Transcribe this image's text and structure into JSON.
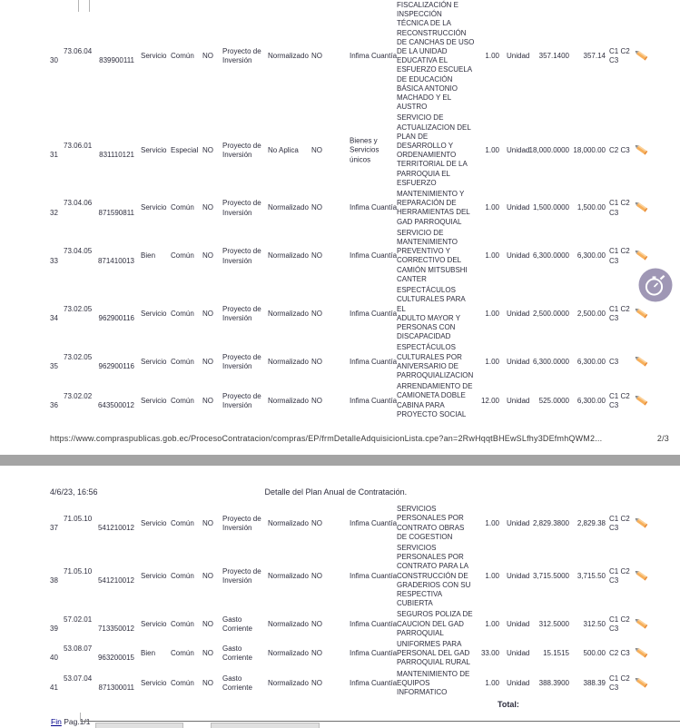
{
  "colors": {
    "pencil": "#f7b05c",
    "pencil_tip": "#8a8a8a",
    "overlay_circle": "#958cad",
    "link": "#00008b",
    "separator_bar": "#a4a4a4"
  },
  "page2": {
    "rows": [
      {
        "num": "30",
        "partida": "73.06.04",
        "codigo": "839900111",
        "tipo": "Servicio",
        "compra": "Común",
        "flag": "NO",
        "presupuesto": "Proyecto de Inversión",
        "normalizado_label": "Normalizado",
        "normalizado_flag": "NO",
        "procedimiento_lines": [
          "Infima Cuantía"
        ],
        "descripcion_lines": [
          "FISCALIZACIÓN E",
          "INSPECCIÓN",
          "TÉCNICA DE LA",
          "RECONSTRUCCIÓN",
          "DE CANCHAS DE USO",
          "DE LA UNIDAD",
          "EDUCATIVA EL",
          "ESFUERZO ESCUELA",
          "DE EDUCACIÓN",
          "BÁSICA ANTONIO",
          "MACHADO Y EL",
          "AUSTRO"
        ],
        "cantidad": "1.00",
        "unidad": "Unidad",
        "costo_unitario": "357.1400",
        "costo_total": "357.14",
        "cuatrimestre": "C1 C2 C3"
      },
      {
        "num": "31",
        "partida": "73.06.01",
        "codigo": "831110121",
        "tipo": "Servicio",
        "compra": "Especial",
        "flag": "NO",
        "presupuesto": "Proyecto de Inversión",
        "normalizado_label": "No Aplica",
        "normalizado_flag": "NO",
        "procedimiento_lines": [
          "Bienes y",
          "Servicios",
          "únicos"
        ],
        "descripcion_lines": [
          "SERVICIO DE",
          "ACTUALIZACION DEL",
          "PLAN DE",
          "DESARROLLO Y",
          "ORDENAMIENTO",
          "TERRITORIAL DE LA",
          "PARROQUIA EL",
          "ESFUERZO"
        ],
        "cantidad": "1.00",
        "unidad": "Unidad",
        "costo_unitario": "18,000.0000",
        "costo_total": "18,000.00",
        "cuatrimestre": "C2 C3"
      },
      {
        "num": "32",
        "partida": "73.04.06",
        "codigo": "871590811",
        "tipo": "Servicio",
        "compra": "Común",
        "flag": "NO",
        "presupuesto": "Proyecto de Inversión",
        "normalizado_label": "Normalizado",
        "normalizado_flag": "NO",
        "procedimiento_lines": [
          "Infima Cuantía"
        ],
        "descripcion_lines": [
          "MANTENIMIENTO Y",
          "REPARACIÓN DE",
          "HERRAMIENTAS DEL",
          "GAD PARROQUIAL"
        ],
        "cantidad": "1.00",
        "unidad": "Unidad",
        "costo_unitario": "1,500.0000",
        "costo_total": "1,500.00",
        "cuatrimestre": "C1 C2 C3"
      },
      {
        "num": "33",
        "partida": "73.04.05",
        "codigo": "871410013",
        "tipo": "Bien",
        "compra": "Común",
        "flag": "NO",
        "presupuesto": "Proyecto de Inversión",
        "normalizado_label": "Normalizado",
        "normalizado_flag": "NO",
        "procedimiento_lines": [
          "Infima Cuantía"
        ],
        "descripcion_lines": [
          "SERVICIO DE",
          "MANTENIMIENTO",
          "PREVENTIVO Y",
          "CORRECTIVO DEL",
          "CAMIÓN MITSUBSHI",
          "CANTER"
        ],
        "cantidad": "1.00",
        "unidad": "Unidad",
        "costo_unitario": "6,300.0000",
        "costo_total": "6,300.00",
        "cuatrimestre": "C1 C2 C3"
      },
      {
        "num": "34",
        "partida": "73.02.05",
        "codigo": "962900116",
        "tipo": "Servicio",
        "compra": "Común",
        "flag": "NO",
        "presupuesto": "Proyecto de Inversión",
        "normalizado_label": "Normalizado",
        "normalizado_flag": "NO",
        "procedimiento_lines": [
          "Infima Cuantía"
        ],
        "descripcion_lines": [
          "ESPECTÁCULOS",
          "CULTURALES PARA EL",
          "ADULTO MAYOR Y",
          "PERSONAS CON",
          "DISCAPACIDAD"
        ],
        "cantidad": "1.00",
        "unidad": "Unidad",
        "costo_unitario": "2,500.0000",
        "costo_total": "2,500.00",
        "cuatrimestre": "C1 C2 C3"
      },
      {
        "num": "35",
        "partida": "73.02.05",
        "codigo": "962900116",
        "tipo": "Servicio",
        "compra": "Común",
        "flag": "NO",
        "presupuesto": "Proyecto de Inversión",
        "normalizado_label": "Normalizado",
        "normalizado_flag": "NO",
        "procedimiento_lines": [
          "Infima Cuantía"
        ],
        "descripcion_lines": [
          "ESPECTÁCULOS",
          "CULTURALES POR",
          "ANIVERSARIO DE",
          "PARROQUIALIZACION"
        ],
        "cantidad": "1.00",
        "unidad": "Unidad",
        "costo_unitario": "6,300.0000",
        "costo_total": "6,300.00",
        "cuatrimestre": "C3"
      },
      {
        "num": "36",
        "partida": "73.02.02",
        "codigo": "643500012",
        "tipo": "Servicio",
        "compra": "Común",
        "flag": "NO",
        "presupuesto": "Proyecto de Inversión",
        "normalizado_label": "Normalizado",
        "normalizado_flag": "NO",
        "procedimiento_lines": [
          "Infima Cuantía"
        ],
        "descripcion_lines": [
          "ARRENDAMIENTO DE",
          "CAMIONETA DOBLE",
          "CABINA PARA",
          "PROYECTO SOCIAL"
        ],
        "cantidad": "12.00",
        "unidad": "Unidad",
        "costo_unitario": "525.0000",
        "costo_total": "6,300.00",
        "cuatrimestre": "C1 C2 C3"
      }
    ],
    "footer_url": "https://www.compraspublicas.gob.ec/ProcesoContratacion/compras/EP/frmDetalleAdquisicionLista.cpe?an=2RwHqqtBHEwSLfhy3DEfmhQWM2...",
    "footer_page": "2/3"
  },
  "page3": {
    "header_datetime": "4/6/23, 16:56",
    "header_title": "Detalle del Plan Anual de Contratación.",
    "rows": [
      {
        "num": "37",
        "partida": "71.05.10",
        "codigo": "541210012",
        "tipo": "Servicio",
        "compra": "Común",
        "flag": "NO",
        "presupuesto": "Proyecto de Inversión",
        "normalizado_label": "Normalizado",
        "normalizado_flag": "NO",
        "procedimiento_lines": [
          "Infima Cuantía"
        ],
        "descripcion_lines": [
          "SERVICIOS",
          "PERSONALES POR",
          "CONTRATO OBRAS",
          "DE COGESTION"
        ],
        "cantidad": "1.00",
        "unidad": "Unidad",
        "costo_unitario": "2,829.3800",
        "costo_total": "2,829.38",
        "cuatrimestre": "C1 C2 C3"
      },
      {
        "num": "38",
        "partida": "71.05.10",
        "codigo": "541210012",
        "tipo": "Servicio",
        "compra": "Común",
        "flag": "NO",
        "presupuesto": "Proyecto de Inversión",
        "normalizado_label": "Normalizado",
        "normalizado_flag": "NO",
        "procedimiento_lines": [
          "Infima Cuantía"
        ],
        "descripcion_lines": [
          "SERVICIOS",
          "PERSONALES POR",
          "CONTRATO PARA LA",
          "CONSTRUCCIÓN DE",
          "GRADERIOS CON SU",
          "RESPECTIVA",
          "CUBIERTA"
        ],
        "cantidad": "1.00",
        "unidad": "Unidad",
        "costo_unitario": "3,715.5000",
        "costo_total": "3,715.50",
        "cuatrimestre": "C1 C2 C3"
      },
      {
        "num": "39",
        "partida": "57.02.01",
        "codigo": "713350012",
        "tipo": "Servicio",
        "compra": "Común",
        "flag": "NO",
        "presupuesto": "Gasto Corriente",
        "normalizado_label": "Normalizado",
        "normalizado_flag": "NO",
        "procedimiento_lines": [
          "Infima Cuantía"
        ],
        "descripcion_lines": [
          "SEGUROS POLIZA DE",
          "CAUCION DEL GAD",
          "PARROQUIAL"
        ],
        "cantidad": "1.00",
        "unidad": "Unidad",
        "costo_unitario": "312.5000",
        "costo_total": "312.50",
        "cuatrimestre": "C1 C2 C3"
      },
      {
        "num": "40",
        "partida": "53.08.07",
        "codigo": "963200015",
        "tipo": "Bien",
        "compra": "Común",
        "flag": "NO",
        "presupuesto": "Gasto Corriente",
        "normalizado_label": "Normalizado",
        "normalizado_flag": "NO",
        "procedimiento_lines": [
          "Infima Cuantía"
        ],
        "descripcion_lines": [
          "UNIFORMES PARA",
          "PERSONAL DEL GAD",
          "PARROQUIAL RURAL"
        ],
        "cantidad": "33.00",
        "unidad": "Unidad",
        "costo_unitario": "15.1515",
        "costo_total": "500.00",
        "cuatrimestre": "C2 C3"
      },
      {
        "num": "41",
        "partida": "53.07.04",
        "codigo": "871300011",
        "tipo": "Servicio",
        "compra": "Común",
        "flag": "NO",
        "presupuesto": "Gasto Corriente",
        "normalizado_label": "Normalizado",
        "normalizado_flag": "NO",
        "procedimiento_lines": [
          "Infima Cuantía"
        ],
        "descripcion_lines": [
          "MANTENIMIENTO DE",
          "EQUIPOS",
          "INFORMATICO"
        ],
        "cantidad": "1.00",
        "unidad": "Unidad",
        "costo_unitario": "388.3900",
        "costo_total": "388.39",
        "cuatrimestre": "C1 C2 C3"
      }
    ],
    "total_label": "Total:",
    "fin_link": "Fin",
    "pag_label": "Pag.1/1"
  }
}
